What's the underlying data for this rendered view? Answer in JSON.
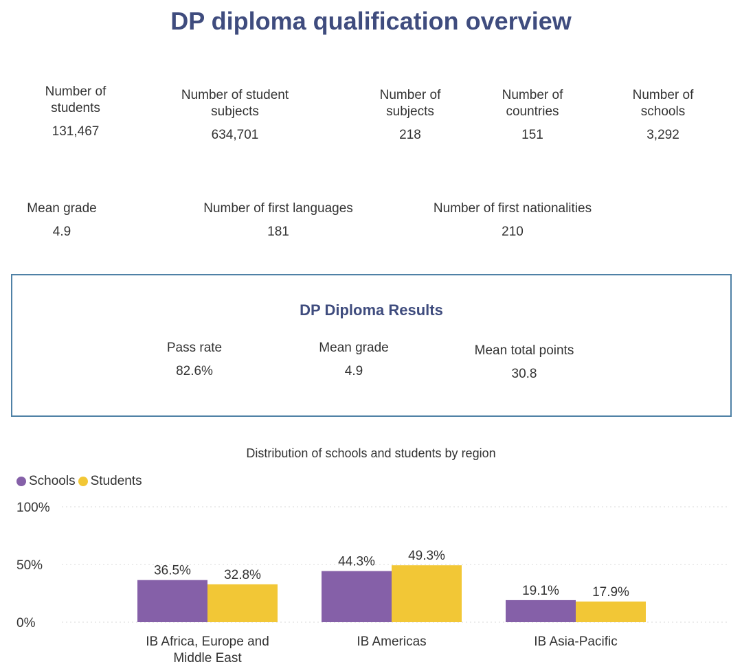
{
  "header": {
    "title": "DP diploma qualification overview"
  },
  "stats_row1": [
    {
      "label": "Number of students",
      "value": "131,467"
    },
    {
      "label": "Number of student subjects",
      "value": "634,701"
    },
    {
      "label": "Number of subjects",
      "value": "218"
    },
    {
      "label": "Number of countries",
      "value": "151"
    },
    {
      "label": "Number of schools",
      "value": "3,292"
    }
  ],
  "stats_row2": [
    {
      "label": "Mean grade",
      "value": "4.9"
    },
    {
      "label": "Number of first languages",
      "value": "181"
    },
    {
      "label": "Number of first nationalities",
      "value": "210"
    }
  ],
  "results": {
    "title": "DP Diploma Results",
    "items": [
      {
        "label": "Pass rate",
        "value": "82.6%"
      },
      {
        "label": "Mean grade",
        "value": "4.9"
      },
      {
        "label": "Mean total points",
        "value": "30.8"
      }
    ]
  },
  "chart_data": {
    "type": "bar",
    "title": "Distribution of schools and students by region",
    "categories": [
      "IB Africa, Europe and Middle East",
      "IB Americas",
      "IB Asia-Pacific"
    ],
    "series": [
      {
        "name": "Schools",
        "color": "#8560a8",
        "values": [
          36.5,
          44.3,
          19.1
        ],
        "labels": [
          "36.5%",
          "44.3%",
          "19.1%"
        ]
      },
      {
        "name": "Students",
        "color": "#f2c736",
        "values": [
          32.8,
          49.3,
          17.9
        ],
        "labels": [
          "32.8%",
          "49.3%",
          "17.9%"
        ]
      }
    ],
    "yticks": [
      "0%",
      "50%",
      "100%"
    ],
    "ylim": [
      0,
      100
    ],
    "grid": true,
    "legend": "top-left"
  }
}
